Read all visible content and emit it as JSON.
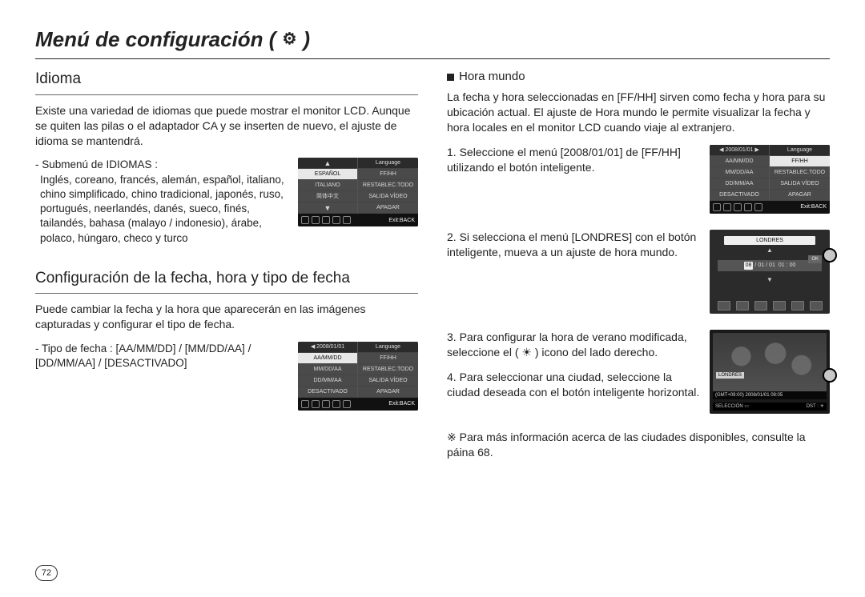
{
  "page_number": "72",
  "title": {
    "text": "Menú de configuración (",
    "icon_name": "gear",
    "close": ")"
  },
  "left": {
    "idioma": {
      "heading": "Idioma",
      "para": "Existe una variedad de idiomas que puede mostrar el monitor LCD. Aunque se quiten las pilas o el adaptador CA y se inserten de nuevo, el ajuste de idioma se mantendrá.",
      "submenu_label": "- Submenú de IDIOMAS :",
      "languages_para": "Inglés, coreano, francés, alemán, español, italiano, chino simplificado, chino tradicional, japonés, ruso, portugués, neerlandés, danés, sueco, finés, tailandés, bahasa (malayo / indonesio), árabe, polaco, húngaro, checo y turco",
      "lcd": {
        "left_col": [
          "▲",
          "ESPAÑOL",
          "ITALIANO",
          "简体中文",
          "▼"
        ],
        "right_col": [
          "Language",
          "FF/HH",
          "RESTABLEC.TODO",
          "SALIDA VÍDEO",
          "APAGAR"
        ],
        "selected_left_index": 1,
        "exit": "Exit:BACK"
      }
    },
    "fecha": {
      "heading": "Configuración de la fecha, hora y tipo de fecha",
      "para": "Puede cambiar la fecha y la hora que aparecerán en las imágenes capturadas y configurar el tipo de fecha.",
      "type_label": "- Tipo de fecha : [AA/MM/DD] / [MM/DD/AA] / [DD/MM/AA] / [DESACTIVADO]",
      "lcd": {
        "left_col": [
          "◀  2008/01/01",
          "AA/MM/DD",
          "MM/DD/AA",
          "DD/MM/AA",
          "DESACTIVADO"
        ],
        "right_col": [
          "Language",
          "FF/HH",
          "RESTABLEC.TODO",
          "SALIDA VÍDEO",
          "APAGAR"
        ],
        "selected_left_index": 1,
        "exit": "Exit:BACK"
      }
    }
  },
  "right": {
    "hora_mundo": {
      "heading": "Hora mundo",
      "intro": "La fecha y hora seleccionadas en [FF/HH] sirven como fecha y hora para su ubicación actual. El ajuste de Hora mundo le permite visualizar la fecha y hora locales en el monitor LCD cuando viaje al extranjero.",
      "step1": "1. Seleccione el menú [2008/01/01] de [FF/HH] utilizando el botón inteligente.",
      "step1_lcd": {
        "left_col": [
          "◀  2008/01/01  ▶",
          "AA/MM/DD",
          "MM/DD/AA",
          "DD/MM/AA",
          "DESACTIVADO"
        ],
        "right_col": [
          "Language",
          "FF/HH",
          "RESTABLEC.TODO",
          "SALIDA VÍDEO",
          "APAGAR"
        ],
        "selected_right_index": 1,
        "exit": "Exit:BACK"
      },
      "step2": "2. Si selecciona el menú [LONDRES] con el botón inteligente, mueva a un ajuste de hora mundo.",
      "step2_lcd": {
        "city": "LONDRES",
        "date_boxes": [
          "08",
          "01",
          "01",
          "01",
          "00"
        ],
        "sep": "/",
        "ok": "OK",
        "side_circle_top_pct": 22
      },
      "step3": "3. Para configurar la hora de verano modificada, seleccione el ( ☀ ) icono del lado derecho.",
      "step4": "4. Para seleccionar una ciudad, seleccione la ciudad deseada con el botón inteligente horizontal.",
      "step3_lcd": {
        "city": "LONDRES",
        "gmt": "(GMT+09:00) 2008/01/01 09:05",
        "sel_left": "SELECCIÓN ▭",
        "sel_right": "DST : ☀",
        "side_circle_top_pct": 46
      },
      "footnote": "※ Para más información acerca de las ciudades disponibles, consulte la páina 68."
    }
  },
  "colors": {
    "text": "#222222",
    "lcd_bg": "#222222",
    "lcd_cell": "#4a4a4a",
    "lcd_sel_bg": "#e8e8e8"
  }
}
